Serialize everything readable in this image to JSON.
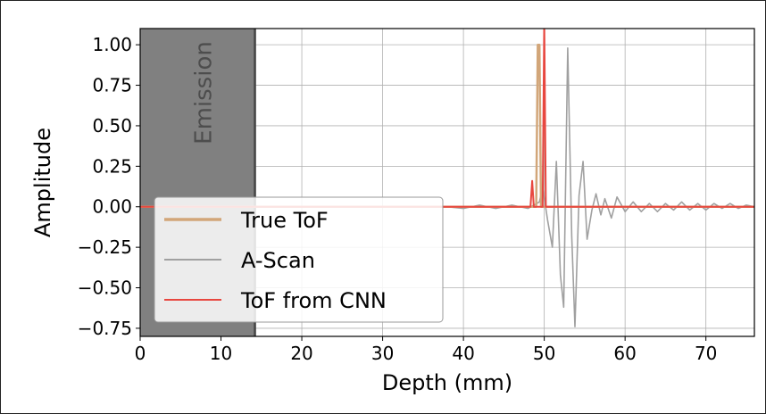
{
  "chart_data": {
    "type": "line",
    "xlabel": "Depth (mm)",
    "ylabel": "Amplitude",
    "xlim": [
      0,
      76
    ],
    "ylim": [
      -0.8,
      1.1
    ],
    "x_ticks": [
      0,
      10,
      20,
      30,
      40,
      50,
      60,
      70
    ],
    "x_tick_labels": [
      "0",
      "10",
      "20",
      "30",
      "40",
      "50",
      "60",
      "70"
    ],
    "y_ticks": [
      1.0,
      0.75,
      0.5,
      0.25,
      0.0,
      -0.25,
      -0.5,
      -0.75
    ],
    "y_tick_labels": [
      "1.00",
      "0.75",
      "0.50",
      "0.25",
      "0.00",
      "−0.25",
      "−0.50",
      "−0.75"
    ],
    "grid": true,
    "legend_position": "lower-left",
    "shaded_region": {
      "x_range": [
        0,
        14.2
      ],
      "label": "Emission",
      "color": "#808080"
    },
    "series": [
      {
        "name": "True ToF",
        "color": "#d2a679",
        "x": [
          0,
          49.0,
          49.2,
          49.4,
          49.6,
          76
        ],
        "y": [
          0,
          0,
          1.0,
          1.0,
          0,
          0
        ]
      },
      {
        "name": "A-Scan",
        "color": "#a0a0a0",
        "x": [
          14.2,
          38,
          40,
          42,
          44,
          46,
          48,
          49.4,
          49.8,
          50.4,
          51.0,
          51.5,
          52.0,
          52.4,
          52.9,
          53.4,
          53.8,
          54.3,
          54.8,
          55.3,
          55.9,
          56.4,
          57.0,
          57.5,
          58.3,
          59.0,
          60.0,
          61.0,
          62.0,
          63.0,
          64.0,
          65.0,
          66.0,
          67.0,
          68.0,
          69.0,
          70.0,
          71.0,
          72.0,
          73.0,
          74.0,
          75.0,
          76.0
        ],
        "y": [
          0,
          0,
          -0.01,
          0.01,
          -0.01,
          0.01,
          -0.01,
          0.03,
          0.12,
          -0.08,
          -0.25,
          0.28,
          -0.42,
          -0.62,
          0.98,
          -0.18,
          -0.74,
          0.07,
          0.28,
          -0.2,
          -0.02,
          0.08,
          -0.05,
          0.05,
          -0.07,
          0.06,
          -0.03,
          0.03,
          -0.03,
          0.02,
          -0.03,
          0.02,
          -0.02,
          0.03,
          -0.02,
          0.02,
          -0.02,
          0.02,
          -0.01,
          0.02,
          -0.01,
          0.01,
          0
        ]
      },
      {
        "name": "ToF from CNN",
        "color": "#e8473f",
        "x": [
          0,
          48.3,
          48.5,
          48.7,
          49.0,
          49.8,
          50.0,
          50.2,
          50.5,
          76
        ],
        "y": [
          0,
          0,
          0.16,
          0,
          0,
          0,
          1.15,
          0,
          0,
          0
        ]
      }
    ]
  }
}
